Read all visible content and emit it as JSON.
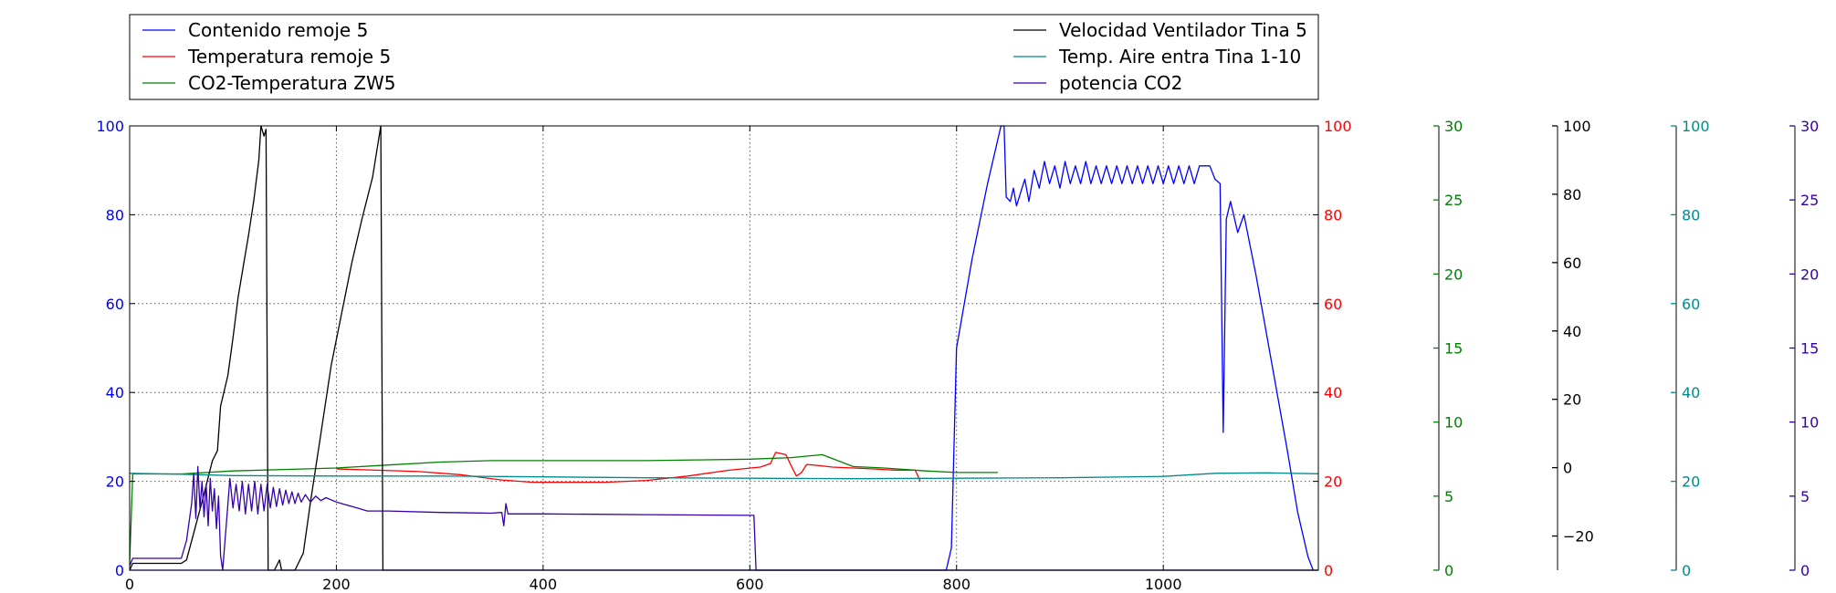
{
  "chart_data": {
    "type": "line",
    "grid": true,
    "legend_placement": "top",
    "x_axis": {
      "range": [
        0,
        1150
      ],
      "ticks": [
        0,
        200,
        400,
        600,
        800,
        1000
      ],
      "color": "#000000"
    },
    "axes": [
      {
        "id": "ax_blue",
        "side": "left",
        "range": [
          0,
          100
        ],
        "ticks": [
          0,
          20,
          40,
          60,
          80,
          100
        ],
        "color": "#0000ff"
      },
      {
        "id": "ax_red",
        "side": "right",
        "range": [
          0,
          100
        ],
        "ticks": [
          0,
          20,
          40,
          60,
          80,
          100
        ],
        "color": "#ff0000"
      },
      {
        "id": "ax_green",
        "side": "right",
        "range": [
          0,
          30
        ],
        "ticks": [
          0,
          5,
          10,
          15,
          20,
          25,
          30
        ],
        "color": "#008000"
      },
      {
        "id": "ax_black",
        "side": "right",
        "range": [
          -30,
          100
        ],
        "ticks": [
          -20,
          0,
          20,
          40,
          60,
          80,
          100
        ],
        "tick_labels": [
          "−20",
          "0",
          "20",
          "40",
          "60",
          "80",
          "100"
        ],
        "color": "#000000"
      },
      {
        "id": "ax_teal",
        "side": "right",
        "range": [
          0,
          100
        ],
        "ticks": [
          0,
          20,
          40,
          60,
          80,
          100
        ],
        "color": "#008b8b"
      },
      {
        "id": "ax_indigo",
        "side": "right",
        "range": [
          0,
          30
        ],
        "ticks": [
          0,
          5,
          10,
          15,
          20,
          25,
          30
        ],
        "color": "#3300aa"
      }
    ],
    "series": [
      {
        "name": "Contenido remoje 5",
        "axis": "ax_blue",
        "color": "#0000ff",
        "points": [
          [
            0,
            0
          ],
          [
            790,
            0
          ],
          [
            795,
            5
          ],
          [
            800,
            50
          ],
          [
            815,
            70
          ],
          [
            830,
            87
          ],
          [
            843,
            100
          ],
          [
            846,
            100
          ],
          [
            848,
            84
          ],
          [
            852,
            83
          ],
          [
            855,
            86
          ],
          [
            858,
            82
          ],
          [
            862,
            85
          ],
          [
            866,
            88
          ],
          [
            870,
            83
          ],
          [
            875,
            90
          ],
          [
            880,
            86
          ],
          [
            885,
            92
          ],
          [
            890,
            87
          ],
          [
            895,
            91
          ],
          [
            900,
            86
          ],
          [
            905,
            92
          ],
          [
            910,
            87
          ],
          [
            915,
            91
          ],
          [
            920,
            87
          ],
          [
            925,
            92
          ],
          [
            930,
            87
          ],
          [
            935,
            91
          ],
          [
            940,
            87
          ],
          [
            945,
            91
          ],
          [
            950,
            87
          ],
          [
            955,
            91
          ],
          [
            960,
            87
          ],
          [
            965,
            91
          ],
          [
            970,
            87
          ],
          [
            975,
            91
          ],
          [
            980,
            87
          ],
          [
            985,
            91
          ],
          [
            990,
            87
          ],
          [
            995,
            91
          ],
          [
            1000,
            87
          ],
          [
            1005,
            91
          ],
          [
            1010,
            87
          ],
          [
            1015,
            91
          ],
          [
            1020,
            87
          ],
          [
            1025,
            91
          ],
          [
            1030,
            87
          ],
          [
            1035,
            91
          ],
          [
            1045,
            91
          ],
          [
            1050,
            88
          ],
          [
            1055,
            87
          ],
          [
            1058,
            31
          ],
          [
            1061,
            79
          ],
          [
            1065,
            83
          ],
          [
            1072,
            76
          ],
          [
            1078,
            80
          ],
          [
            1090,
            66
          ],
          [
            1100,
            53
          ],
          [
            1110,
            40
          ],
          [
            1120,
            27
          ],
          [
            1130,
            13
          ],
          [
            1140,
            3
          ],
          [
            1145,
            0
          ]
        ]
      },
      {
        "name": "Temperatura remoje 5",
        "axis": "ax_red",
        "color": "#ff0000",
        "points": [
          [
            200,
            22.8
          ],
          [
            240,
            22.5
          ],
          [
            280,
            22.2
          ],
          [
            320,
            21.5
          ],
          [
            360,
            20.3
          ],
          [
            390,
            19.8
          ],
          [
            420,
            19.8
          ],
          [
            460,
            19.8
          ],
          [
            500,
            20.2
          ],
          [
            540,
            21.2
          ],
          [
            580,
            22.5
          ],
          [
            610,
            23.2
          ],
          [
            620,
            24.0
          ],
          [
            625,
            26.5
          ],
          [
            635,
            26.0
          ],
          [
            640,
            23.5
          ],
          [
            645,
            21.2
          ],
          [
            650,
            22.0
          ],
          [
            655,
            23.8
          ],
          [
            665,
            23.6
          ],
          [
            680,
            23.2
          ],
          [
            700,
            23.0
          ],
          [
            720,
            22.8
          ],
          [
            740,
            22.5
          ],
          [
            760,
            22.5
          ],
          [
            765,
            20.0
          ]
        ]
      },
      {
        "name": "CO2-Temperatura ZW5",
        "axis": "ax_green",
        "color": "#008000",
        "points": [
          [
            0,
            0.5
          ],
          [
            3,
            6.5
          ],
          [
            50,
            6.5
          ],
          [
            100,
            6.7
          ],
          [
            150,
            6.8
          ],
          [
            200,
            6.9
          ],
          [
            250,
            7.1
          ],
          [
            300,
            7.3
          ],
          [
            350,
            7.4
          ],
          [
            400,
            7.4
          ],
          [
            450,
            7.4
          ],
          [
            500,
            7.4
          ],
          [
            550,
            7.45
          ],
          [
            600,
            7.5
          ],
          [
            640,
            7.6
          ],
          [
            670,
            7.8
          ],
          [
            700,
            7.0
          ],
          [
            730,
            6.9
          ],
          [
            770,
            6.7
          ],
          [
            800,
            6.6
          ],
          [
            840,
            6.6
          ]
        ]
      },
      {
        "name": "Velocidad Ventilador Tina 5",
        "axis": "ax_black",
        "color": "#000000",
        "points": [
          [
            0,
            -30
          ],
          [
            3,
            -28
          ],
          [
            30,
            -28
          ],
          [
            50,
            -28
          ],
          [
            55,
            -27
          ],
          [
            70,
            -10
          ],
          [
            80,
            2
          ],
          [
            85,
            5
          ],
          [
            88,
            18
          ],
          [
            95,
            27
          ],
          [
            100,
            38
          ],
          [
            105,
            50
          ],
          [
            110,
            59
          ],
          [
            115,
            68
          ],
          [
            120,
            78
          ],
          [
            125,
            90
          ],
          [
            127,
            100
          ],
          [
            130,
            97
          ],
          [
            132,
            99
          ],
          [
            134,
            -30
          ],
          [
            140,
            -30
          ],
          [
            145,
            -27
          ],
          [
            147,
            -30
          ],
          [
            160,
            -30
          ],
          [
            168,
            -25
          ],
          [
            175,
            -10
          ],
          [
            185,
            10
          ],
          [
            195,
            30
          ],
          [
            205,
            45
          ],
          [
            215,
            60
          ],
          [
            225,
            73
          ],
          [
            235,
            85
          ],
          [
            243,
            100
          ],
          [
            245,
            -30
          ],
          [
            1150,
            -30
          ]
        ]
      },
      {
        "name": "Temp. Aire entra Tina 1-10",
        "axis": "ax_teal",
        "color": "#008b8b",
        "points": [
          [
            0,
            21.8
          ],
          [
            50,
            21.6
          ],
          [
            100,
            21.3
          ],
          [
            200,
            21.2
          ],
          [
            300,
            21.2
          ],
          [
            400,
            21.0
          ],
          [
            500,
            20.8
          ],
          [
            600,
            20.7
          ],
          [
            700,
            20.6
          ],
          [
            800,
            20.7
          ],
          [
            900,
            20.8
          ],
          [
            1000,
            21.1
          ],
          [
            1050,
            21.8
          ],
          [
            1100,
            21.9
          ],
          [
            1150,
            21.7
          ]
        ]
      },
      {
        "name": "potencia CO2",
        "axis": "ax_indigo",
        "color": "#3300aa",
        "points": [
          [
            0,
            0.3
          ],
          [
            3,
            0.8
          ],
          [
            50,
            0.8
          ],
          [
            55,
            2.0
          ],
          [
            60,
            4.5
          ],
          [
            62,
            6.5
          ],
          [
            64,
            3.5
          ],
          [
            66,
            7.0
          ],
          [
            68,
            4.2
          ],
          [
            70,
            6.0
          ],
          [
            72,
            3.6
          ],
          [
            74,
            5.8
          ],
          [
            76,
            3.0
          ],
          [
            78,
            6.2
          ],
          [
            80,
            4.0
          ],
          [
            82,
            5.5
          ],
          [
            84,
            2.8
          ],
          [
            86,
            5.0
          ],
          [
            88,
            1.0
          ],
          [
            90,
            0.0
          ],
          [
            94,
            3.5
          ],
          [
            97,
            6.2
          ],
          [
            100,
            4.2
          ],
          [
            103,
            5.8
          ],
          [
            106,
            4.0
          ],
          [
            109,
            6.0
          ],
          [
            112,
            3.8
          ],
          [
            115,
            5.8
          ],
          [
            118,
            4.0
          ],
          [
            121,
            6.0
          ],
          [
            124,
            3.8
          ],
          [
            127,
            5.8
          ],
          [
            130,
            4.0
          ],
          [
            133,
            5.8
          ],
          [
            136,
            4.2
          ],
          [
            139,
            5.6
          ],
          [
            142,
            4.3
          ],
          [
            145,
            5.5
          ],
          [
            148,
            4.4
          ],
          [
            151,
            5.4
          ],
          [
            154,
            4.5
          ],
          [
            157,
            5.3
          ],
          [
            160,
            4.5
          ],
          [
            163,
            5.2
          ],
          [
            166,
            4.6
          ],
          [
            170,
            5.1
          ],
          [
            175,
            4.6
          ],
          [
            180,
            5.0
          ],
          [
            185,
            4.7
          ],
          [
            190,
            4.9
          ],
          [
            200,
            4.6
          ],
          [
            210,
            4.4
          ],
          [
            220,
            4.2
          ],
          [
            230,
            4.0
          ],
          [
            250,
            4.0
          ],
          [
            300,
            3.9
          ],
          [
            350,
            3.85
          ],
          [
            360,
            3.9
          ],
          [
            362,
            3.0
          ],
          [
            364,
            4.5
          ],
          [
            366,
            3.8
          ],
          [
            400,
            3.8
          ],
          [
            500,
            3.75
          ],
          [
            600,
            3.7
          ],
          [
            604,
            3.7
          ],
          [
            606,
            0
          ],
          [
            1150,
            0
          ]
        ]
      }
    ],
    "legend": {
      "left": [
        "Contenido remoje 5",
        "Temperatura remoje 5",
        "CO2-Temperatura ZW5"
      ],
      "right": [
        "Velocidad Ventilador Tina 5",
        "Temp. Aire entra Tina 1-10",
        "potencia CO2"
      ]
    }
  }
}
